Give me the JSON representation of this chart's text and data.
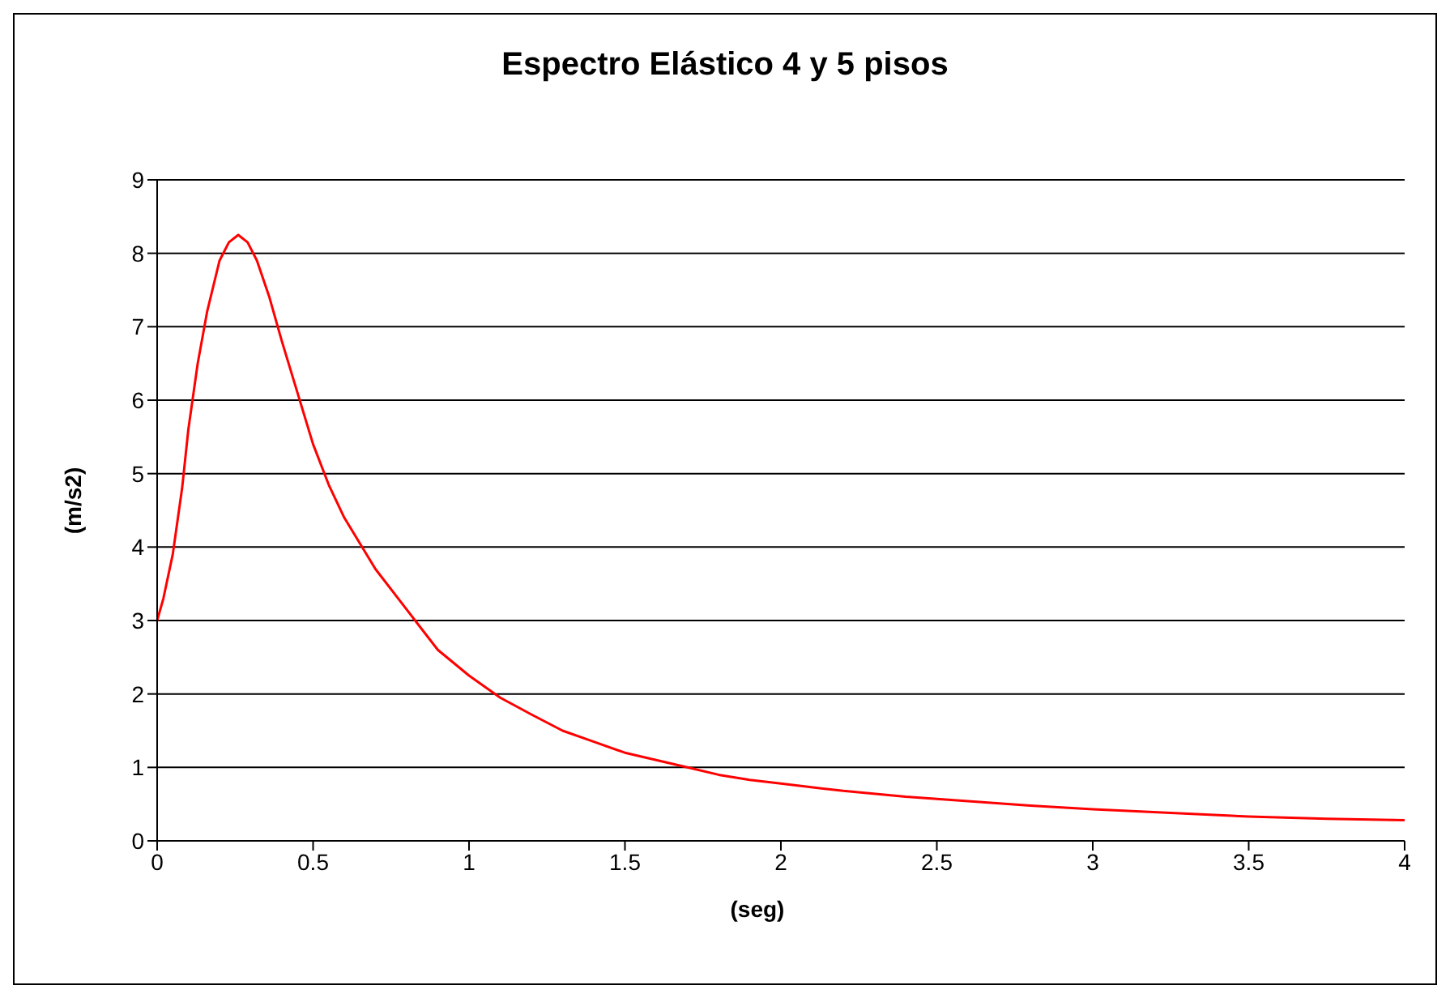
{
  "chart_data": {
    "type": "line",
    "title": "Espectro Elástico 4 y 5 pisos",
    "xlabel": "(seg)",
    "ylabel": "(m/s2)",
    "x": [
      0,
      0.02,
      0.05,
      0.08,
      0.1,
      0.13,
      0.16,
      0.2,
      0.23,
      0.26,
      0.29,
      0.32,
      0.36,
      0.4,
      0.45,
      0.5,
      0.55,
      0.6,
      0.7,
      0.8,
      0.9,
      1.0,
      1.1,
      1.2,
      1.3,
      1.4,
      1.5,
      1.6,
      1.7,
      1.8,
      1.9,
      2.0,
      2.2,
      2.4,
      2.6,
      2.8,
      3.0,
      3.25,
      3.5,
      3.75,
      4.0
    ],
    "series": [
      {
        "color": "#ff0000",
        "values": [
          3.0,
          3.3,
          3.9,
          4.8,
          5.6,
          6.5,
          7.2,
          7.9,
          8.15,
          8.25,
          8.15,
          7.9,
          7.4,
          6.8,
          6.1,
          5.4,
          4.85,
          4.4,
          3.7,
          3.15,
          2.6,
          2.25,
          1.95,
          1.72,
          1.5,
          1.35,
          1.2,
          1.1,
          1.0,
          0.9,
          0.83,
          0.78,
          0.68,
          0.6,
          0.54,
          0.48,
          0.43,
          0.38,
          0.33,
          0.3,
          0.28
        ]
      }
    ],
    "xlim": [
      0,
      4
    ],
    "xticks": [
      0,
      0.5,
      1,
      1.5,
      2,
      2.5,
      3,
      3.5,
      4
    ],
    "ylim": [
      0,
      9
    ],
    "yticks": [
      0,
      1,
      2,
      3,
      4,
      5,
      6,
      7,
      8,
      9
    ],
    "grid": "y",
    "legend": false,
    "marker": "none",
    "line_style": "solid"
  }
}
